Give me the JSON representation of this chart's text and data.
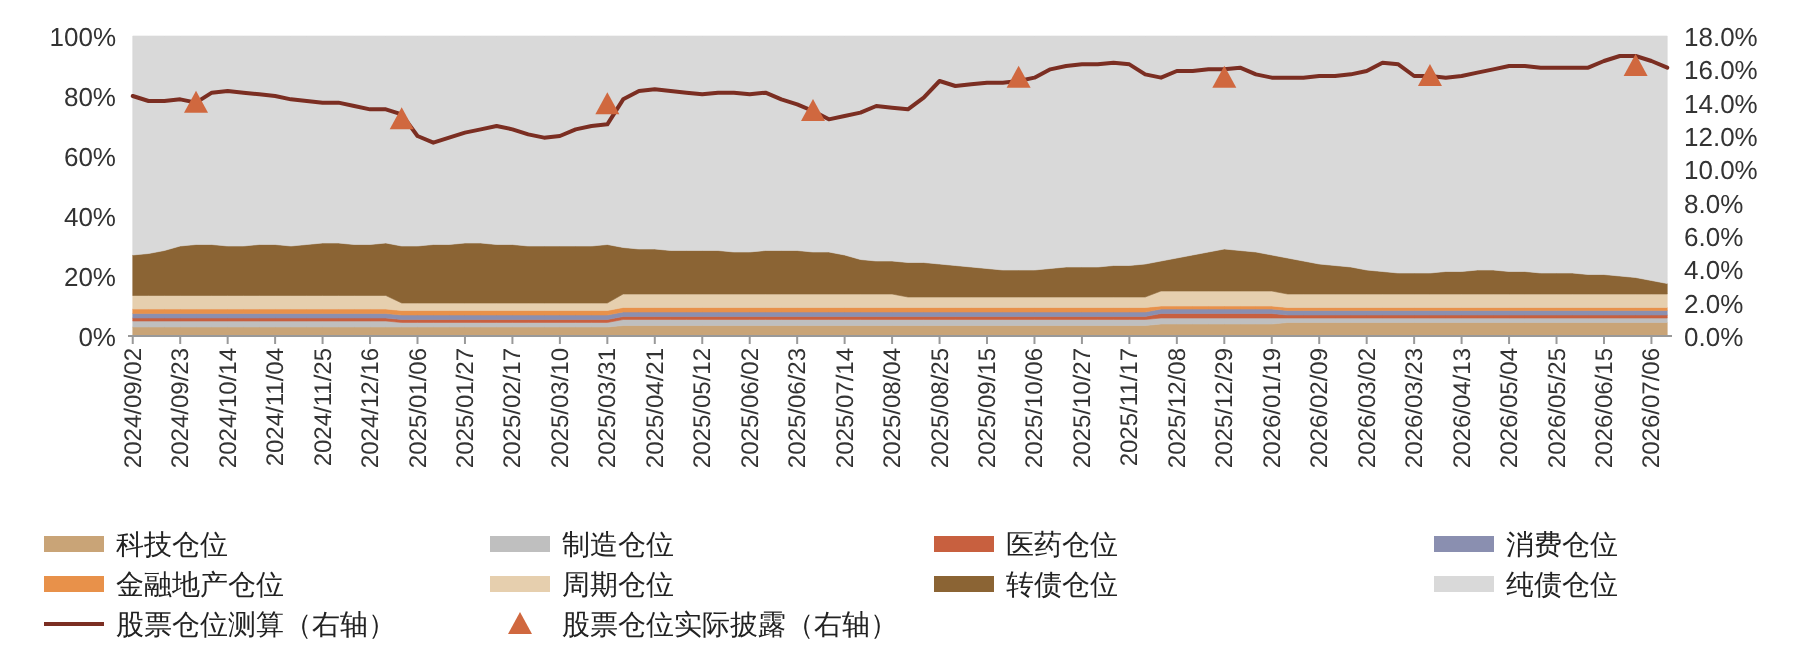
{
  "chart_data": {
    "type": "area",
    "stacked": true,
    "legend": "bottom",
    "categories": [
      "2024/09/02",
      null,
      null,
      "2024/09/23",
      null,
      null,
      "2024/10/14",
      null,
      null,
      "2024/11/04",
      null,
      null,
      "2024/11/25",
      null,
      null,
      "2024/12/16",
      null,
      null,
      "2025/01/06",
      null,
      null,
      "2025/01/27",
      null,
      null,
      "2025/02/17",
      null,
      null,
      "2025/03/10",
      null,
      null,
      "2025/03/31",
      null,
      null,
      "2025/04/21",
      null,
      null,
      "2025/05/12",
      null,
      null,
      "2025/06/02",
      null,
      null,
      "2025/06/23",
      null,
      null,
      "2025/07/14",
      null,
      null,
      "2025/08/04",
      null,
      null,
      "2025/08/25",
      null,
      null,
      "2025/09/15",
      null,
      null,
      "2025/10/06",
      null,
      null,
      "2025/10/27",
      null,
      null,
      "2025/11/17",
      null,
      null,
      "2025/12/08",
      null,
      null,
      "2025/12/29",
      null,
      null,
      "2026/01/19",
      null,
      null,
      "2026/02/09",
      null,
      null,
      "2026/03/02",
      null,
      null,
      "2026/03/23",
      null,
      null,
      "2026/04/13",
      null,
      null,
      "2026/05/04",
      null,
      null,
      "2026/05/25",
      null,
      null,
      "2026/06/15",
      null,
      null,
      "2026/07/06",
      null
    ],
    "ylim": [
      0,
      100
    ],
    "yticks": [
      {
        "value": 0,
        "label": "0%"
      },
      {
        "value": 20,
        "label": "20%"
      },
      {
        "value": 40,
        "label": "40%"
      },
      {
        "value": 60,
        "label": "60%"
      },
      {
        "value": 80,
        "label": "80%"
      },
      {
        "value": 100,
        "label": "100%"
      }
    ],
    "y2lim": [
      0,
      18
    ],
    "y2ticks": [
      {
        "value": 0,
        "label": "0.0%"
      },
      {
        "value": 2,
        "label": "2.0%"
      },
      {
        "value": 4,
        "label": "4.0%"
      },
      {
        "value": 6,
        "label": "6.0%"
      },
      {
        "value": 8,
        "label": "8.0%"
      },
      {
        "value": 10,
        "label": "10.0%"
      },
      {
        "value": 12,
        "label": "12.0%"
      },
      {
        "value": 14,
        "label": "14.0%"
      },
      {
        "value": 16,
        "label": "16.0%"
      },
      {
        "value": 18,
        "label": "18.0%"
      }
    ],
    "series": [
      {
        "name": "科技仓位",
        "color": "#c9a477",
        "values": [
          3,
          3,
          3,
          3,
          3,
          3,
          3,
          3,
          3,
          3,
          3,
          3,
          3,
          3,
          3,
          3,
          3,
          3,
          3,
          3,
          3,
          3,
          3,
          3,
          3,
          3,
          3,
          3,
          3,
          3,
          3,
          3.5,
          3.5,
          3.5,
          3.5,
          3.5,
          3.5,
          3.5,
          3.5,
          3.5,
          3.5,
          3.5,
          3.5,
          3.5,
          3.5,
          3.5,
          3.5,
          3.5,
          3.5,
          3.5,
          3.5,
          3.5,
          3.5,
          3.5,
          3.5,
          3.5,
          3.5,
          3.5,
          3.5,
          3.5,
          3.5,
          3.5,
          3.5,
          3.5,
          3.5,
          4,
          4,
          4,
          4,
          4,
          4,
          4,
          4,
          4.5,
          4.5,
          4.5,
          4.5,
          4.5,
          4.5,
          4.5,
          4.5,
          4.5,
          4.5,
          4.5,
          4.5,
          4.5,
          4.5,
          4.5,
          4.5,
          4.5,
          4.5,
          4.5,
          4.5,
          4.5,
          4.5,
          4.5,
          4.5,
          4.5
        ]
      },
      {
        "name": "制造仓位",
        "color": "#bfbfbf",
        "values": [
          2,
          2,
          2,
          2,
          2,
          2,
          2,
          2,
          2,
          2,
          2,
          2,
          2,
          2,
          2,
          2,
          2,
          1.5,
          1.5,
          1.5,
          1.5,
          1.5,
          1.5,
          1.5,
          1.5,
          1.5,
          1.5,
          1.5,
          1.5,
          1.5,
          1.5,
          2,
          2,
          2,
          2,
          2,
          2,
          2,
          2,
          2,
          2,
          2,
          2,
          2,
          2,
          2,
          2,
          2,
          2,
          2,
          2,
          2,
          2,
          2,
          2,
          2,
          2,
          2,
          2,
          2,
          2,
          2,
          2,
          2,
          2,
          2,
          2,
          2,
          2,
          2,
          2,
          2,
          2,
          1.5,
          1.5,
          1.5,
          1.5,
          1.5,
          1.5,
          1.5,
          1.5,
          1.5,
          1.5,
          1.5,
          1.5,
          1.5,
          1.5,
          1.5,
          1.5,
          1.5,
          1.5,
          1.5,
          1.5,
          1.5,
          1.5,
          1.5,
          1.5,
          1.5
        ]
      },
      {
        "name": "医药仓位",
        "color": "#c8603f",
        "values": [
          1,
          1,
          1,
          1,
          1,
          1,
          1,
          1,
          1,
          1,
          1,
          1,
          1,
          1,
          1,
          1,
          1,
          1,
          1,
          1,
          1,
          1,
          1,
          1,
          1,
          1,
          1,
          1,
          1,
          1,
          1,
          1,
          1,
          1,
          1,
          1,
          1,
          1,
          1,
          1,
          1,
          1,
          1,
          1,
          1,
          1,
          1,
          1,
          1,
          1,
          1,
          1,
          1,
          1,
          1,
          1,
          1,
          1,
          1,
          1,
          1,
          1,
          1,
          1,
          1,
          1.5,
          1.5,
          1.5,
          1.5,
          1.5,
          1.5,
          1.5,
          1.5,
          1,
          1,
          1,
          1,
          1,
          1,
          1,
          1,
          1,
          1,
          1,
          1,
          1,
          1,
          1,
          1,
          1,
          1,
          1,
          1,
          1,
          1,
          1,
          1,
          1
        ]
      },
      {
        "name": "消费仓位",
        "color": "#8a8fb0",
        "values": [
          1.5,
          1.5,
          1.5,
          1.5,
          1.5,
          1.5,
          1.5,
          1.5,
          1.5,
          1.5,
          1.5,
          1.5,
          1.5,
          1.5,
          1.5,
          1.5,
          1.5,
          1.5,
          1.5,
          1.5,
          1.5,
          1.5,
          1.5,
          1.5,
          1.5,
          1.5,
          1.5,
          1.5,
          1.5,
          1.5,
          1.5,
          1.5,
          1.5,
          1.5,
          1.5,
          1.5,
          1.5,
          1.5,
          1.5,
          1.5,
          1.5,
          1.5,
          1.5,
          1.5,
          1.5,
          1.5,
          1.5,
          1.5,
          1.5,
          1.5,
          1.5,
          1.5,
          1.5,
          1.5,
          1.5,
          1.5,
          1.5,
          1.5,
          1.5,
          1.5,
          1.5,
          1.5,
          1.5,
          1.5,
          1.5,
          1.5,
          1.5,
          1.5,
          1.5,
          1.5,
          1.5,
          1.5,
          1.5,
          1.5,
          1.5,
          1.5,
          1.5,
          1.5,
          1.5,
          1.5,
          1.5,
          1.5,
          1.5,
          1.5,
          1.5,
          1.5,
          1.5,
          1.5,
          1.5,
          1.5,
          1.5,
          1.5,
          1.5,
          1.5,
          1.5,
          1.5,
          1.5,
          1.5
        ]
      },
      {
        "name": "金融地产仓位",
        "color": "#e8914a",
        "values": [
          1.5,
          1.5,
          1.5,
          1.5,
          1.5,
          1.5,
          1.5,
          1.5,
          1.5,
          1.5,
          1.5,
          1.5,
          1.5,
          1.5,
          1.5,
          1.5,
          1.5,
          1.5,
          1.5,
          1.5,
          1.5,
          1.5,
          1.5,
          1.5,
          1.5,
          1.5,
          1.5,
          1.5,
          1.5,
          1.5,
          1.5,
          1.5,
          1.5,
          1.5,
          1.5,
          1.5,
          1.5,
          1.5,
          1.5,
          1.5,
          1.5,
          1.5,
          1.5,
          1.5,
          1.5,
          1.5,
          1.5,
          1.5,
          1.5,
          1.5,
          1.5,
          1.5,
          1.5,
          1.5,
          1.5,
          1.5,
          1.5,
          1.5,
          1.5,
          1.5,
          1.5,
          1.5,
          1.5,
          1.5,
          1.5,
          1,
          1,
          1,
          1,
          1,
          1,
          1,
          1,
          1,
          1,
          1,
          1,
          1,
          1,
          1,
          1,
          1,
          1,
          1,
          1,
          1,
          1,
          1,
          1,
          1,
          1,
          1,
          1,
          1,
          1,
          1,
          1,
          1
        ]
      },
      {
        "name": "周期仓位",
        "color": "#e6cfae",
        "values": [
          4.5,
          4.5,
          4.5,
          4.5,
          4.5,
          4.5,
          4.5,
          4.5,
          4.5,
          4.5,
          4.5,
          4.5,
          4.5,
          4.5,
          4.5,
          4.5,
          4.5,
          2.5,
          2.5,
          2.5,
          2.5,
          2.5,
          2.5,
          2.5,
          2.5,
          2.5,
          2.5,
          2.5,
          2.5,
          2.5,
          2.5,
          4.5,
          4.5,
          4.5,
          4.5,
          4.5,
          4.5,
          4.5,
          4.5,
          4.5,
          4.5,
          4.5,
          4.5,
          4.5,
          4.5,
          4.5,
          4.5,
          4.5,
          4.5,
          3.5,
          3.5,
          3.5,
          3.5,
          3.5,
          3.5,
          3.5,
          3.5,
          3.5,
          3.5,
          3.5,
          3.5,
          3.5,
          3.5,
          3.5,
          3.5,
          5,
          5,
          5,
          5,
          5,
          5,
          5,
          5,
          4.5,
          4.5,
          4.5,
          4.5,
          4.5,
          4.5,
          4.5,
          4.5,
          4.5,
          4.5,
          4.5,
          4.5,
          4.5,
          4.5,
          4.5,
          4.5,
          4.5,
          4.5,
          4.5,
          4.5,
          4.5,
          4.5,
          4.5,
          4.5,
          4.5
        ]
      },
      {
        "name": "转债仓位",
        "color": "#8b6434",
        "values": [
          13.5,
          14,
          15,
          16.5,
          17,
          17,
          16.5,
          16.5,
          17,
          17,
          16.5,
          17,
          17.5,
          17.5,
          17,
          17,
          17.5,
          19,
          19,
          19.5,
          19.5,
          20,
          20,
          19.5,
          19.5,
          19,
          19,
          19,
          19,
          19,
          19.5,
          15.5,
          15,
          15,
          14.5,
          14.5,
          14.5,
          14.5,
          14,
          14,
          14.5,
          14.5,
          14.5,
          14,
          14,
          13,
          11.5,
          11,
          11,
          11.5,
          11.5,
          11,
          10.5,
          10,
          9.5,
          9,
          9,
          9,
          9.5,
          10,
          10,
          10,
          10.5,
          10.5,
          11,
          10,
          11,
          12,
          13,
          14,
          13.5,
          13,
          12,
          12,
          11,
          10,
          9.5,
          9,
          8,
          7.5,
          7,
          7,
          7,
          7.5,
          7.5,
          8,
          8,
          7.5,
          7.5,
          7,
          7,
          7,
          6.5,
          6.5,
          6,
          5.5,
          4.5,
          3.5
        ]
      },
      {
        "name": "纯债仓位",
        "color": "#d9d9d9",
        "values": [
          73,
          72.5,
          71.5,
          70,
          69.5,
          69.5,
          70,
          70,
          69.5,
          69.5,
          70,
          69.5,
          69,
          69,
          69.5,
          69.5,
          69,
          70,
          70,
          69.5,
          69.5,
          69,
          69,
          69.5,
          69.5,
          70,
          70,
          70,
          70,
          70,
          69.5,
          70.5,
          71,
          71,
          71.5,
          71.5,
          71.5,
          71.5,
          72,
          72,
          71.5,
          71.5,
          71.5,
          72,
          72,
          73,
          74.5,
          75,
          75,
          75.5,
          75.5,
          76,
          76.5,
          77,
          77.5,
          78,
          78,
          78,
          77.5,
          77,
          77,
          77,
          76.5,
          76.5,
          76,
          75,
          74,
          73,
          72,
          71,
          71.5,
          72,
          73,
          74,
          75,
          76,
          76.5,
          77,
          78,
          78.5,
          79,
          79,
          79,
          78.5,
          78.5,
          78,
          78,
          78.5,
          78.5,
          79,
          79,
          79,
          79.5,
          79.5,
          80,
          80.5,
          81.5,
          82.5
        ]
      },
      {
        "name": "股票仓位测算（右轴）",
        "type": "line",
        "axis": "y2",
        "color": "#7b2e22",
        "values": [
          14.4,
          14.1,
          14.1,
          14.2,
          14.0,
          14.6,
          14.7,
          14.6,
          14.5,
          14.4,
          14.2,
          14.1,
          14.0,
          14.0,
          13.8,
          13.6,
          13.6,
          13.3,
          12.0,
          11.6,
          11.9,
          12.2,
          12.4,
          12.6,
          12.4,
          12.1,
          11.9,
          12.0,
          12.4,
          12.6,
          12.7,
          14.2,
          14.7,
          14.8,
          14.7,
          14.6,
          14.5,
          14.6,
          14.6,
          14.5,
          14.6,
          14.2,
          13.9,
          13.5,
          13.0,
          13.2,
          13.4,
          13.8,
          13.7,
          13.6,
          14.3,
          15.3,
          15.0,
          15.1,
          15.2,
          15.2,
          15.3,
          15.5,
          16.0,
          16.2,
          16.3,
          16.3,
          16.4,
          16.3,
          15.7,
          15.5,
          15.9,
          15.9,
          16.0,
          16.0,
          16.1,
          15.7,
          15.5,
          15.5,
          15.5,
          15.6,
          15.6,
          15.7,
          15.9,
          16.4,
          16.3,
          15.6,
          15.6,
          15.5,
          15.6,
          15.8,
          16.0,
          16.2,
          16.2,
          16.1,
          16.1,
          16.1,
          16.1,
          16.5,
          16.8,
          16.8,
          16.5,
          16.1
        ]
      },
      {
        "name": "股票仓位实际披露（右轴）",
        "type": "scatter",
        "axis": "y2",
        "marker": "triangle",
        "color": "#d0683f",
        "values": [
          null,
          null,
          null,
          null,
          14.0,
          null,
          null,
          null,
          null,
          null,
          null,
          null,
          null,
          null,
          null,
          null,
          null,
          13.0,
          null,
          null,
          null,
          null,
          null,
          null,
          null,
          null,
          null,
          null,
          null,
          null,
          13.9,
          null,
          null,
          null,
          null,
          null,
          null,
          null,
          null,
          null,
          null,
          null,
          null,
          13.5,
          null,
          null,
          null,
          null,
          null,
          null,
          null,
          null,
          null,
          null,
          null,
          null,
          15.5,
          null,
          null,
          null,
          null,
          null,
          null,
          null,
          null,
          null,
          null,
          null,
          null,
          15.5,
          null,
          null,
          null,
          null,
          null,
          null,
          null,
          null,
          null,
          null,
          null,
          null,
          15.6,
          null,
          null,
          null,
          null,
          null,
          null,
          null,
          null,
          null,
          null,
          null,
          null,
          16.2,
          null,
          null
        ]
      }
    ]
  }
}
